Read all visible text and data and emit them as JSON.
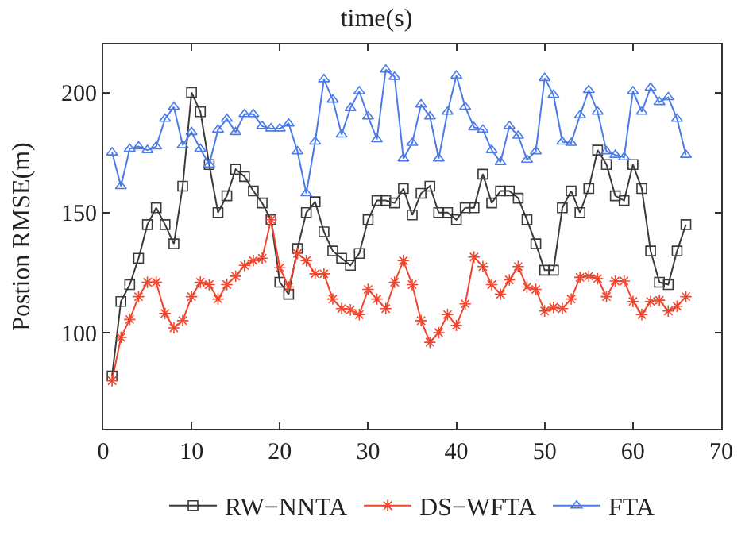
{
  "chart_data": {
    "type": "line",
    "title": "time(s)",
    "ylabel": "Postion RMSE(m)",
    "x": [
      1,
      2,
      3,
      4,
      5,
      6,
      7,
      8,
      9,
      10,
      11,
      12,
      13,
      14,
      15,
      16,
      17,
      18,
      19,
      20,
      21,
      22,
      23,
      24,
      25,
      26,
      27,
      28,
      29,
      30,
      31,
      32,
      33,
      34,
      35,
      36,
      37,
      38,
      39,
      40,
      41,
      42,
      43,
      44,
      45,
      46,
      47,
      48,
      49,
      50,
      51,
      52,
      53,
      54,
      55,
      56,
      57,
      58,
      59,
      60,
      61,
      62,
      63,
      64,
      65,
      66
    ],
    "xlim": [
      0,
      70
    ],
    "xticks": [
      0,
      10,
      20,
      30,
      40,
      50,
      60,
      70
    ],
    "ylim": [
      60,
      220
    ],
    "yticks": [
      100,
      150,
      200
    ],
    "legend": "bottom",
    "line_style": "solid",
    "series": [
      {
        "name": "RW−NNTA",
        "color": "#3a3a3a",
        "marker": "square",
        "values": [
          82,
          113,
          120,
          131,
          145,
          152,
          145,
          137,
          161,
          200,
          192,
          170,
          150,
          157,
          168,
          165,
          159,
          154,
          147,
          121,
          116,
          135,
          150,
          154.5,
          142,
          134,
          131,
          128,
          133,
          147,
          155,
          155,
          154,
          160,
          149,
          158,
          161,
          150,
          150,
          147,
          152,
          152,
          166,
          154,
          159,
          159,
          156,
          147,
          137,
          126,
          126,
          152,
          159,
          150,
          160,
          176,
          170,
          157,
          155,
          170,
          160,
          134,
          121,
          120,
          134,
          145
        ]
      },
      {
        "name": "DS−WFTA",
        "color": "#f0452e",
        "marker": "cross",
        "values": [
          80,
          98,
          105.5,
          115,
          121,
          121,
          108,
          102,
          105,
          115,
          121,
          120,
          114,
          120,
          123.5,
          128,
          130,
          131,
          147,
          127,
          119,
          133,
          130,
          124.5,
          124.5,
          114,
          110,
          109.5,
          107.5,
          118,
          114,
          110,
          121,
          130,
          120,
          105,
          96,
          100,
          107.5,
          103,
          112,
          131.5,
          127.5,
          120,
          116,
          122,
          127.5,
          119,
          118,
          109,
          110.5,
          110,
          114,
          123,
          123.5,
          122.5,
          115,
          121.5,
          121.5,
          113,
          107.5,
          113,
          113.5,
          109,
          111,
          115
        ]
      },
      {
        "name": "FTA",
        "color": "#4a7be8",
        "marker": "triangle",
        "values": [
          175,
          161,
          176.5,
          177.5,
          176,
          177.5,
          189,
          194,
          178,
          183.5,
          176.5,
          170,
          184.5,
          189,
          183.5,
          191,
          191,
          186,
          185,
          185,
          187,
          175.5,
          158,
          179.5,
          205.5,
          197,
          182.5,
          193.5,
          200.5,
          190,
          180.5,
          209.5,
          206.5,
          172.5,
          179,
          195,
          190,
          172.5,
          192,
          207,
          194,
          185.5,
          184.5,
          176,
          171,
          186,
          182,
          172,
          175.5,
          206,
          199,
          179.5,
          179,
          190.5,
          201,
          192,
          175.5,
          174,
          173,
          200.5,
          192,
          202,
          196,
          198,
          189,
          174
        ]
      }
    ]
  }
}
